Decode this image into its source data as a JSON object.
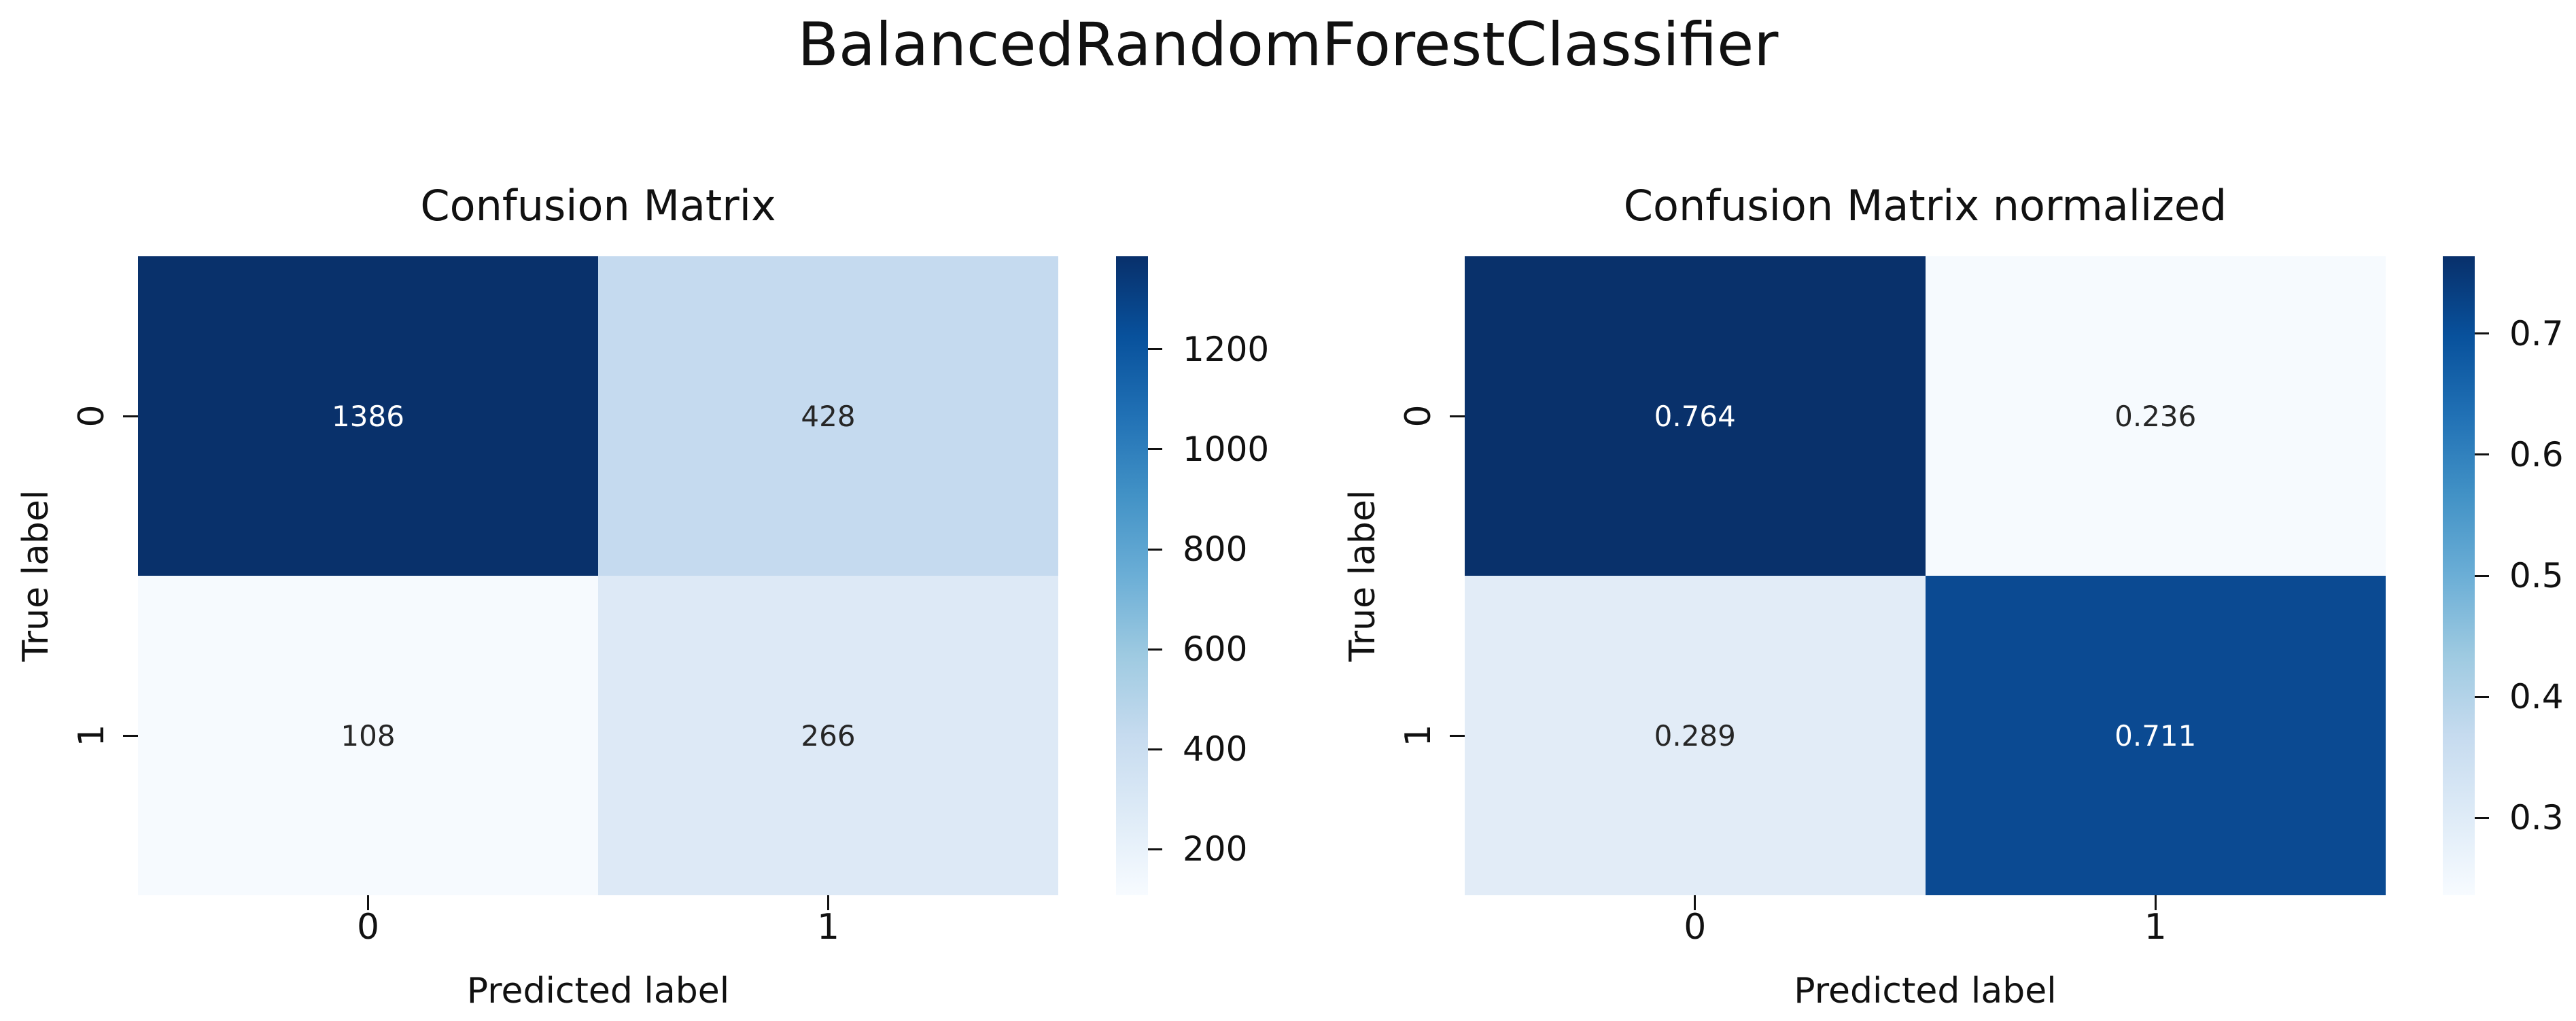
{
  "figure_title": "BalancedRandomForestClassifier",
  "chart_data": [
    {
      "type": "heatmap",
      "title": "Confusion Matrix",
      "xlabel": "Predicted label",
      "ylabel": "True label",
      "x_tick_labels": [
        "0",
        "1"
      ],
      "y_tick_labels": [
        "0",
        "1"
      ],
      "values": [
        [
          1386,
          428
        ],
        [
          108,
          266
        ]
      ],
      "cell_text": [
        [
          "1386",
          "428"
        ],
        [
          "108",
          "266"
        ]
      ],
      "cell_colors": [
        [
          "#09316b",
          "#c5daef"
        ],
        [
          "#f6fafe",
          "#dde9f6"
        ]
      ],
      "cell_text_colors": [
        [
          "#ffffff",
          "#262626"
        ],
        [
          "#262626",
          "#262626"
        ]
      ],
      "colormap": "Blues",
      "grid": false,
      "colorbar": {
        "position": "right",
        "vmin": 108,
        "vmax": 1386,
        "tick_values": [
          1200,
          1000,
          800,
          600,
          400,
          200
        ],
        "tick_labels": [
          "1200",
          "1000",
          "800",
          "600",
          "400",
          "200"
        ],
        "gradient_bottom_to_top": [
          "#f7fbff",
          "#deebf7",
          "#c6dbef",
          "#9ecae1",
          "#6baed6",
          "#4292c6",
          "#2171b5",
          "#08519c",
          "#08306b"
        ]
      }
    },
    {
      "type": "heatmap",
      "title": "Confusion Matrix normalized",
      "xlabel": "Predicted label",
      "ylabel": "True label",
      "x_tick_labels": [
        "0",
        "1"
      ],
      "y_tick_labels": [
        "0",
        "1"
      ],
      "values": [
        [
          0.764,
          0.236
        ],
        [
          0.289,
          0.711
        ]
      ],
      "cell_text": [
        [
          "0.764",
          "0.236"
        ],
        [
          "0.289",
          "0.711"
        ]
      ],
      "cell_colors": [
        [
          "#09316b",
          "#f6fafe"
        ],
        [
          "#e2ecf7",
          "#0b4a92"
        ]
      ],
      "cell_text_colors": [
        [
          "#ffffff",
          "#262626"
        ],
        [
          "#262626",
          "#ffffff"
        ]
      ],
      "colormap": "Blues",
      "grid": false,
      "colorbar": {
        "position": "right",
        "vmin": 0.236,
        "vmax": 0.764,
        "tick_values": [
          0.7,
          0.6,
          0.5,
          0.4,
          0.3
        ],
        "tick_labels": [
          "0.7",
          "0.6",
          "0.5",
          "0.4",
          "0.3"
        ],
        "gradient_bottom_to_top": [
          "#f7fbff",
          "#deebf7",
          "#c6dbef",
          "#9ecae1",
          "#6baed6",
          "#4292c6",
          "#2171b5",
          "#08519c",
          "#08306b"
        ]
      }
    }
  ]
}
